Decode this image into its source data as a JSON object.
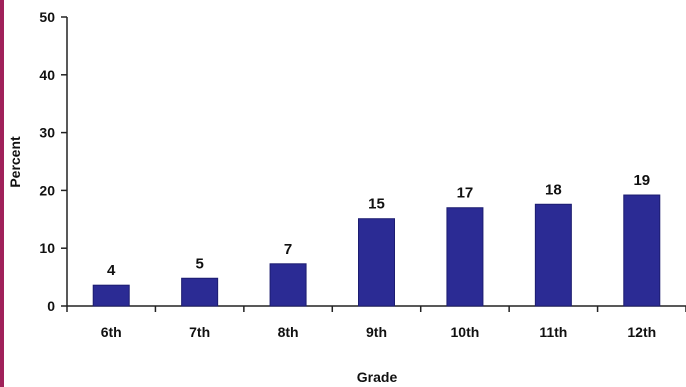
{
  "chart_data": {
    "type": "bar",
    "categories": [
      "6th",
      "7th",
      "8th",
      "9th",
      "10th",
      "11th",
      "12th"
    ],
    "values": [
      3.6,
      4.8,
      7.3,
      15.1,
      17.0,
      17.6,
      19.2
    ],
    "data_labels": [
      "4",
      "5",
      "7",
      "15",
      "17",
      "18",
      "19"
    ],
    "title": "",
    "xlabel": "Grade",
    "ylabel": "Percent",
    "ylim": [
      0,
      50
    ],
    "yticks": [
      0,
      10,
      20,
      30,
      40,
      50
    ],
    "ytick_labels": [
      "0",
      "10",
      "20",
      "30",
      "40",
      "50"
    ],
    "grid": false,
    "bar_color": "#2b2b94"
  }
}
